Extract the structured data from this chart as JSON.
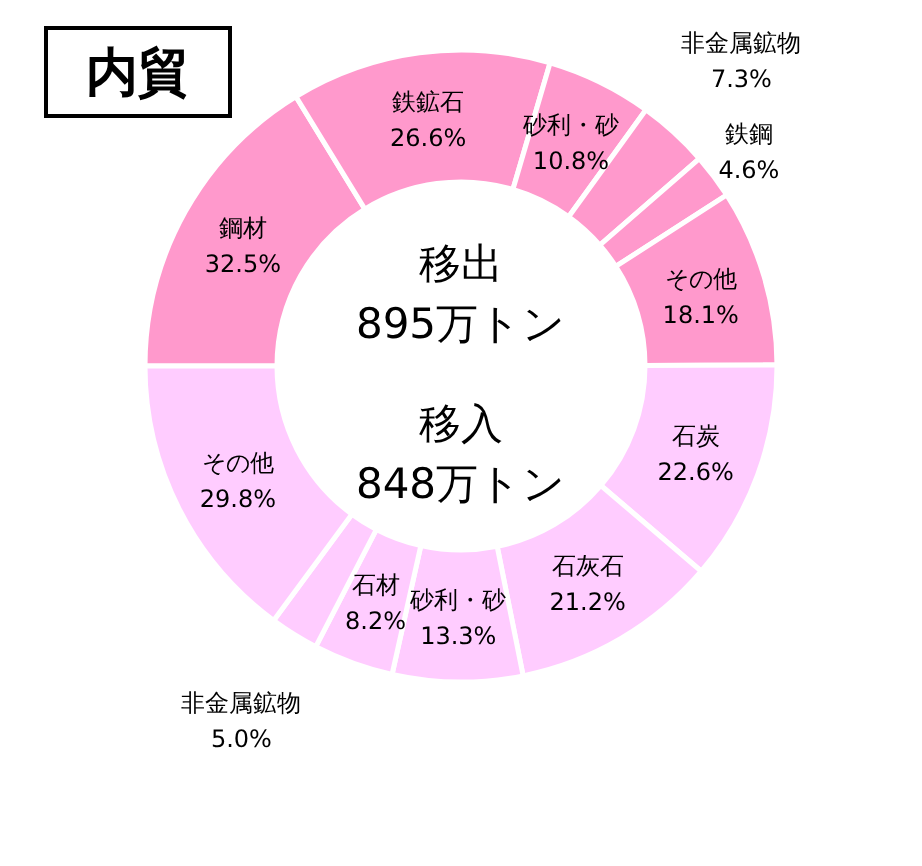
{
  "chart_data": {
    "type": "donut",
    "title": "内貿",
    "categories": [
      "鋼材",
      "鉄鉱石",
      "砂利・砂",
      "非金属鉱物",
      "鉄鋼",
      "その他",
      "石炭",
      "石灰石",
      "砂利・砂",
      "石材",
      "非金属鉱物",
      "その他"
    ],
    "values": [
      32.5,
      26.6,
      10.8,
      7.3,
      4.6,
      18.1,
      22.6,
      21.2,
      13.3,
      8.2,
      5.0,
      29.8
    ],
    "value_labels": [
      "32.5%",
      "26.6%",
      "10.8%",
      "7.3%",
      "4.6%",
      "18.1%",
      "22.6%",
      "21.2%",
      "13.3%",
      "8.2%",
      "5.0%",
      "29.8%"
    ],
    "colors": [
      "#ff99cc",
      "#ff99cc",
      "#ff99cc",
      "#ff99cc",
      "#ff99cc",
      "#ff99cc",
      "#ffccff",
      "#ffccff",
      "#ffccff",
      "#ffccff",
      "#ffccff",
      "#ffccff"
    ],
    "annotations": [
      "移出",
      "895万トン",
      "移入",
      "848万トン"
    ]
  }
}
